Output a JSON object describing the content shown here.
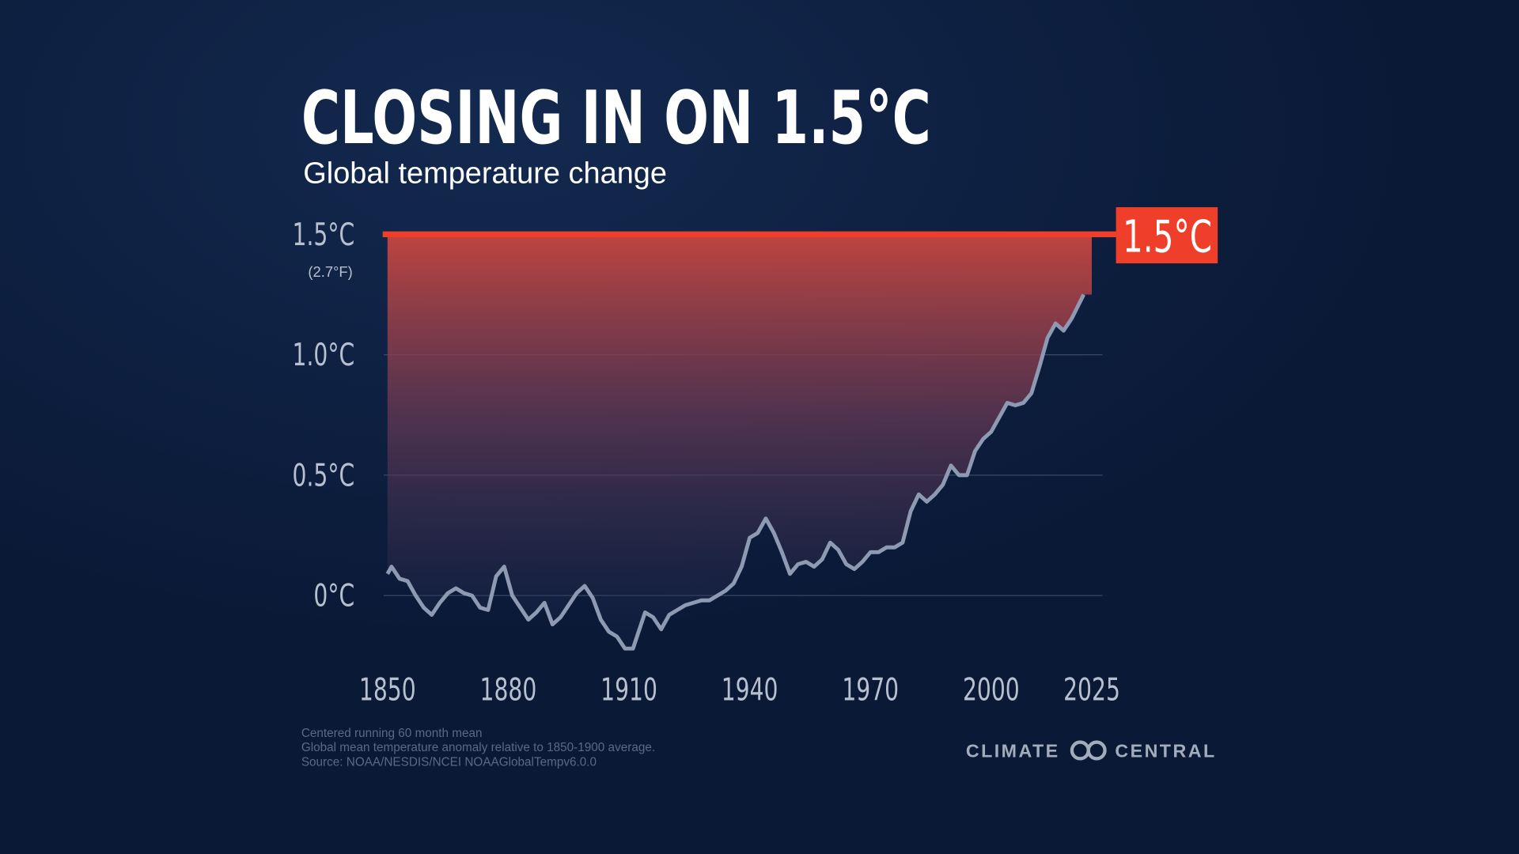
{
  "chart_data": {
    "type": "line",
    "title": "CLOSING IN ON 1.5°C",
    "subtitle": "Global temperature change",
    "color": "#8e9ab2",
    "x": [
      1850,
      1851,
      1853,
      1855,
      1857,
      1859,
      1861,
      1863,
      1865,
      1867,
      1869,
      1871,
      1873,
      1875,
      1877,
      1879,
      1881,
      1883,
      1885,
      1887,
      1889,
      1891,
      1893,
      1895,
      1897,
      1899,
      1901,
      1903,
      1905,
      1907,
      1909,
      1911,
      1913,
      1914,
      1916,
      1918,
      1920,
      1922,
      1924,
      1926,
      1928,
      1930,
      1932,
      1934,
      1936,
      1938,
      1940,
      1942,
      1944,
      1946,
      1948,
      1950,
      1952,
      1954,
      1956,
      1958,
      1960,
      1962,
      1964,
      1966,
      1968,
      1970,
      1972,
      1974,
      1976,
      1978,
      1980,
      1982,
      1984,
      1986,
      1988,
      1990,
      1992,
      1994,
      1996,
      1998,
      2000,
      2002,
      2004,
      2006,
      2008,
      2010,
      2012,
      2014,
      2016,
      2018,
      2020,
      2023
    ],
    "values": [
      0.09,
      0.12,
      0.07,
      0.06,
      0.0,
      -0.05,
      -0.08,
      -0.03,
      0.01,
      0.03,
      0.01,
      0.0,
      -0.05,
      -0.06,
      0.08,
      0.12,
      0.0,
      -0.05,
      -0.1,
      -0.07,
      -0.03,
      -0.12,
      -0.09,
      -0.04,
      0.01,
      0.04,
      -0.01,
      -0.1,
      -0.15,
      -0.17,
      -0.22,
      -0.22,
      -0.12,
      -0.07,
      -0.09,
      -0.14,
      -0.08,
      -0.06,
      -0.04,
      -0.03,
      -0.02,
      -0.02,
      0.0,
      0.02,
      0.05,
      0.12,
      0.24,
      0.26,
      0.32,
      0.26,
      0.18,
      0.09,
      0.13,
      0.14,
      0.12,
      0.15,
      0.22,
      0.19,
      0.13,
      0.11,
      0.14,
      0.18,
      0.18,
      0.2,
      0.2,
      0.22,
      0.35,
      0.42,
      0.39,
      0.42,
      0.46,
      0.54,
      0.5,
      0.5,
      0.6,
      0.65,
      0.68,
      0.74,
      0.8,
      0.79,
      0.8,
      0.84,
      0.95,
      1.07,
      1.13,
      1.1,
      1.15,
      1.25
    ],
    "xlim": [
      1850,
      2025
    ],
    "ylim": [
      -0.3,
      1.5
    ],
    "xticks": [
      1850,
      1880,
      1910,
      1940,
      1970,
      2000,
      2025
    ],
    "yticks": [
      {
        "value": 0,
        "label": "0°C"
      },
      {
        "value": 0.5,
        "label": "0.5°C"
      },
      {
        "value": 1.0,
        "label": "1.0°C"
      },
      {
        "value": 1.5,
        "label": "1.5°C"
      }
    ],
    "grid": true,
    "fahrenheit_note": "(2.7°F)",
    "threshold": {
      "value": 1.5,
      "label": "1.5°C",
      "color": "#ef3e2a"
    },
    "notes": [
      "Centered running 60 month mean",
      "Global mean temperature anomaly relative to 1850-1900 average.",
      "Source: NOAA/NESDIS/NCEI NOAAGlobalTempv6.0.0"
    ],
    "brand": [
      "CLIMATE",
      "CENTRAL"
    ]
  }
}
